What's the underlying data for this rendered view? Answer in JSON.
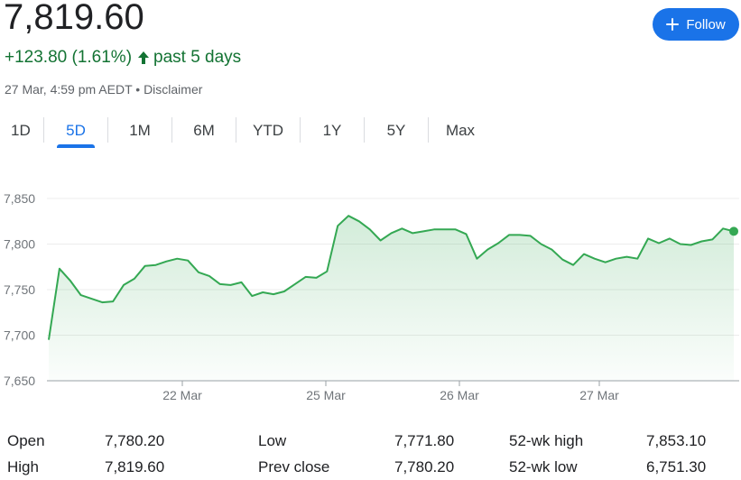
{
  "header": {
    "price": "7,819.60",
    "change": "+123.80 (1.61%)",
    "period": "past 5 days",
    "timestamp": "27 Mar, 4:59 pm AEDT",
    "separator": "•",
    "disclaimer": "Disclaimer"
  },
  "follow": {
    "label": "Follow",
    "icon": "plus-icon"
  },
  "tabs": [
    {
      "label": "1D",
      "active": false
    },
    {
      "label": "5D",
      "active": true
    },
    {
      "label": "1M",
      "active": false
    },
    {
      "label": "6M",
      "active": false
    },
    {
      "label": "YTD",
      "active": false
    },
    {
      "label": "1Y",
      "active": false
    },
    {
      "label": "5Y",
      "active": false
    },
    {
      "label": "Max",
      "active": false
    }
  ],
  "colors": {
    "accent": "#1a73e8",
    "positive": "#137333",
    "line": "#34a853",
    "muted": "#5f6368"
  },
  "chart_data": {
    "type": "area",
    "y_ticks": [
      "7,850",
      "7,800",
      "7,750",
      "7,700",
      "7,650"
    ],
    "ylim": [
      7650,
      7850
    ],
    "x_ticks": [
      "22 Mar",
      "25 Mar",
      "26 Mar",
      "27 Mar"
    ],
    "grid": true,
    "series": [
      {
        "values": [
          7695,
          7773,
          7760,
          7744,
          7740,
          7736,
          7737,
          7755,
          7762,
          7776,
          7777,
          7781,
          7784,
          7782,
          7769,
          7765,
          7756,
          7755,
          7758,
          7743,
          7747,
          7745,
          7748,
          7756,
          7764,
          7763,
          7770,
          7820,
          7831,
          7825,
          7816,
          7804,
          7812,
          7817,
          7812,
          7814,
          7816,
          7816,
          7816,
          7811,
          7784,
          7794,
          7801,
          7810,
          7810,
          7809,
          7800,
          7794,
          7783,
          7777,
          7789,
          7784,
          7780,
          7784,
          7786,
          7784,
          7806,
          7801,
          7806,
          7800,
          7799,
          7803,
          7805,
          7817,
          7814
        ]
      }
    ]
  },
  "stats": {
    "rows": [
      [
        {
          "label": "Open",
          "value": "7,780.20"
        },
        {
          "label": "Low",
          "value": "7,771.80"
        },
        {
          "label": "52-wk high",
          "value": "7,853.10"
        }
      ],
      [
        {
          "label": "High",
          "value": "7,819.60"
        },
        {
          "label": "Prev close",
          "value": "7,780.20"
        },
        {
          "label": "52-wk low",
          "value": "6,751.30"
        }
      ]
    ]
  }
}
